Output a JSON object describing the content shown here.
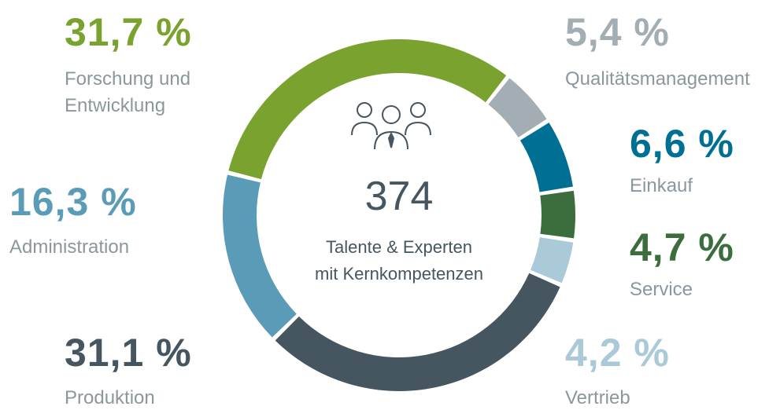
{
  "chart_data": {
    "type": "donut",
    "categories": [
      "Forschung und Entwicklung",
      "Qualitätsmanagement",
      "Einkauf",
      "Service",
      "Vertrieb",
      "Produktion",
      "Administration"
    ],
    "values": [
      31.7,
      5.4,
      6.6,
      4.7,
      4.2,
      31.1,
      16.3
    ],
    "value_labels": [
      "31,7 %",
      "5,4 %",
      "6,6 %",
      "4,7 %",
      "4,2 %",
      "31,1 %",
      "16,3 %"
    ],
    "colors": [
      "#7aa22f",
      "#a3aeb4",
      "#006f94",
      "#3b6d3d",
      "#aac9d9",
      "#465660",
      "#5a9bb8"
    ],
    "center_value": 374,
    "center_text": [
      "Talente & Experten",
      "mit Kernkompetenzen"
    ]
  }
}
